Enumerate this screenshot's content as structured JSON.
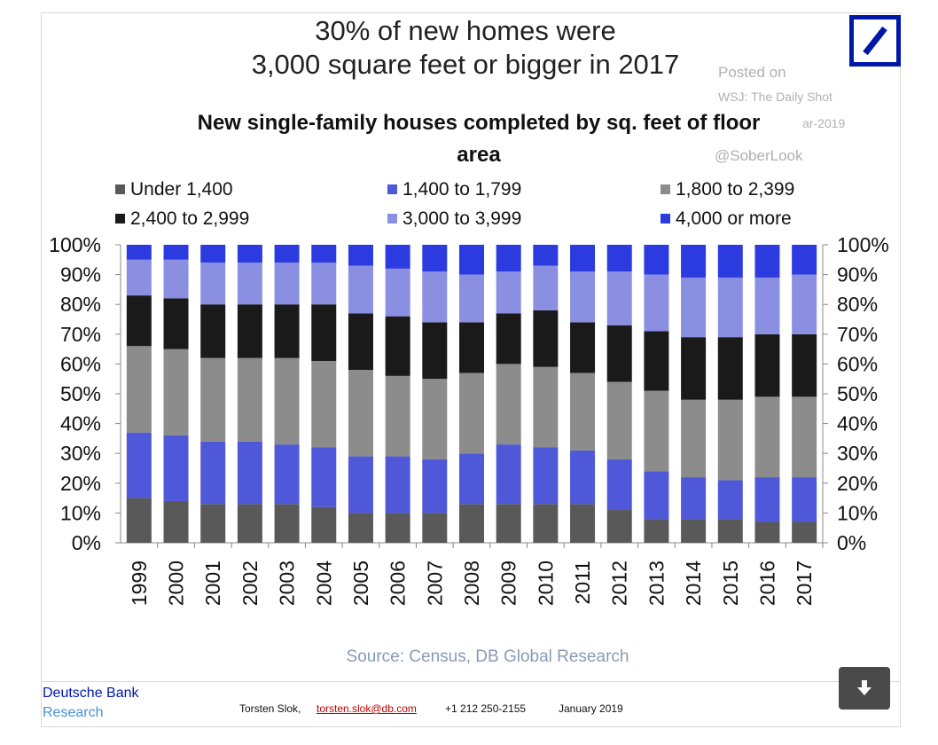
{
  "headline": {
    "line1": "30% of new homes were",
    "line2": "3,000 square feet or bigger in 2017"
  },
  "watermark": {
    "posted_on": "Posted on",
    "outlet": "WSJ: The Daily Shot",
    "date_fragment": "ar-2019",
    "handle": "@SoberLook"
  },
  "logo": {
    "name": "Deutsche Bank slash logo",
    "color": "#0018a8"
  },
  "chart_data": {
    "type": "bar",
    "stacked": true,
    "title_line1": "New single-family houses completed by sq. feet of floor",
    "title_line2": "area",
    "categories": [
      "1999",
      "2000",
      "2001",
      "2002",
      "2003",
      "2004",
      "2005",
      "2006",
      "2007",
      "2008",
      "2009",
      "2010",
      "2011",
      "2012",
      "2013",
      "2014",
      "2015",
      "2016",
      "2017"
    ],
    "series": [
      {
        "name": "Under 1,400",
        "color": "#595959",
        "values": [
          15,
          14,
          13,
          13,
          13,
          12,
          10,
          10,
          10,
          13,
          13,
          13,
          13,
          11,
          8,
          8,
          8,
          7,
          7
        ]
      },
      {
        "name": "1,400 to 1,799",
        "color": "#4f58d8",
        "values": [
          22,
          22,
          21,
          21,
          20,
          20,
          19,
          19,
          18,
          17,
          20,
          19,
          18,
          17,
          16,
          14,
          13,
          15,
          15
        ]
      },
      {
        "name": "1,800 to 2,399",
        "color": "#8c8c8c",
        "values": [
          29,
          29,
          28,
          28,
          29,
          29,
          29,
          27,
          27,
          27,
          27,
          27,
          26,
          26,
          27,
          26,
          27,
          27,
          27
        ]
      },
      {
        "name": "2,400 to 2,999",
        "color": "#1a1a1a",
        "values": [
          17,
          17,
          18,
          18,
          18,
          19,
          19,
          20,
          19,
          17,
          17,
          19,
          17,
          19,
          20,
          21,
          21,
          21,
          21
        ]
      },
      {
        "name": "3,000 to 3,999",
        "color": "#8a8fe2",
        "values": [
          12,
          13,
          14,
          14,
          14,
          14,
          16,
          16,
          17,
          16,
          14,
          15,
          17,
          18,
          19,
          20,
          20,
          19,
          20
        ]
      },
      {
        "name": "4,000 or more",
        "color": "#2b3bdf",
        "values": [
          5,
          5,
          6,
          6,
          6,
          6,
          7,
          8,
          9,
          10,
          9,
          7,
          9,
          9,
          10,
          11,
          11,
          11,
          10
        ]
      }
    ],
    "ylim": [
      0,
      100
    ],
    "yticks": [
      "0%",
      "10%",
      "20%",
      "30%",
      "40%",
      "50%",
      "60%",
      "70%",
      "80%",
      "90%",
      "100%"
    ],
    "source": "Source: Census, DB Global Research"
  },
  "footer": {
    "brand_line1": "Deutsche Bank",
    "brand_line2": "Research",
    "brand_color1": "#0018a8",
    "brand_color2": "#4a8fd6",
    "author": "Torsten Slok,",
    "email": "torsten.slok@db.com",
    "phone": "+1 212 250-2155",
    "date": "January 2019"
  },
  "download_button": {
    "icon": "download-arrow-icon"
  }
}
